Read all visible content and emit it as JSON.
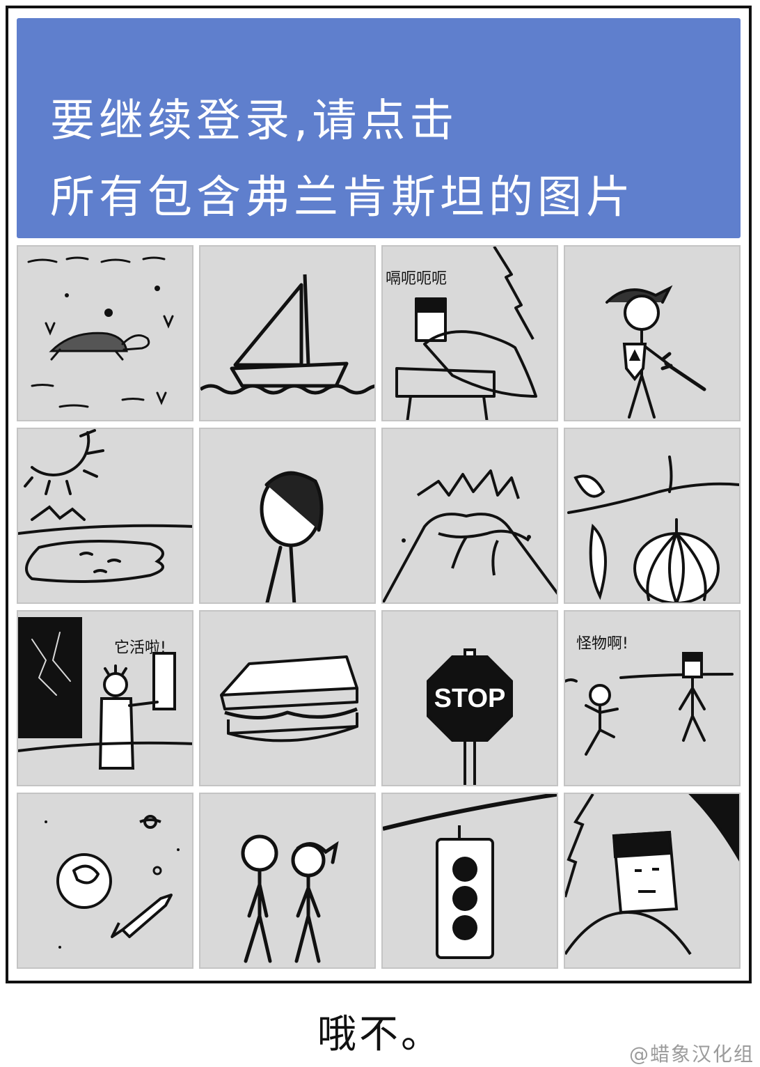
{
  "captcha": {
    "line1": "要继续登录,请点击",
    "line2": "所有包含弗兰肯斯坦的图片",
    "banner_color": "#5f7fcd"
  },
  "tiles": [
    {
      "name": "turtle",
      "speech": ""
    },
    {
      "name": "sailboat",
      "speech": ""
    },
    {
      "name": "frankenstein-rising",
      "speech": "嗝呃呃呃"
    },
    {
      "name": "hero-with-sword",
      "speech": ""
    },
    {
      "name": "desert-oasis",
      "speech": ""
    },
    {
      "name": "person-portrait",
      "speech": ""
    },
    {
      "name": "volcano",
      "speech": ""
    },
    {
      "name": "pumpkin-vine",
      "speech": ""
    },
    {
      "name": "scientist-lab",
      "speech": "它活啦!"
    },
    {
      "name": "sandwich",
      "speech": ""
    },
    {
      "name": "stop-sign",
      "speech": "",
      "sign_text": "STOP"
    },
    {
      "name": "monster-encounter",
      "speech": "怪物啊!"
    },
    {
      "name": "space-rocket",
      "speech": ""
    },
    {
      "name": "two-people",
      "speech": ""
    },
    {
      "name": "traffic-light",
      "speech": ""
    },
    {
      "name": "frankenstein-closeup",
      "speech": ""
    }
  ],
  "caption": "哦不。",
  "credit": "@蜡象汉化组"
}
